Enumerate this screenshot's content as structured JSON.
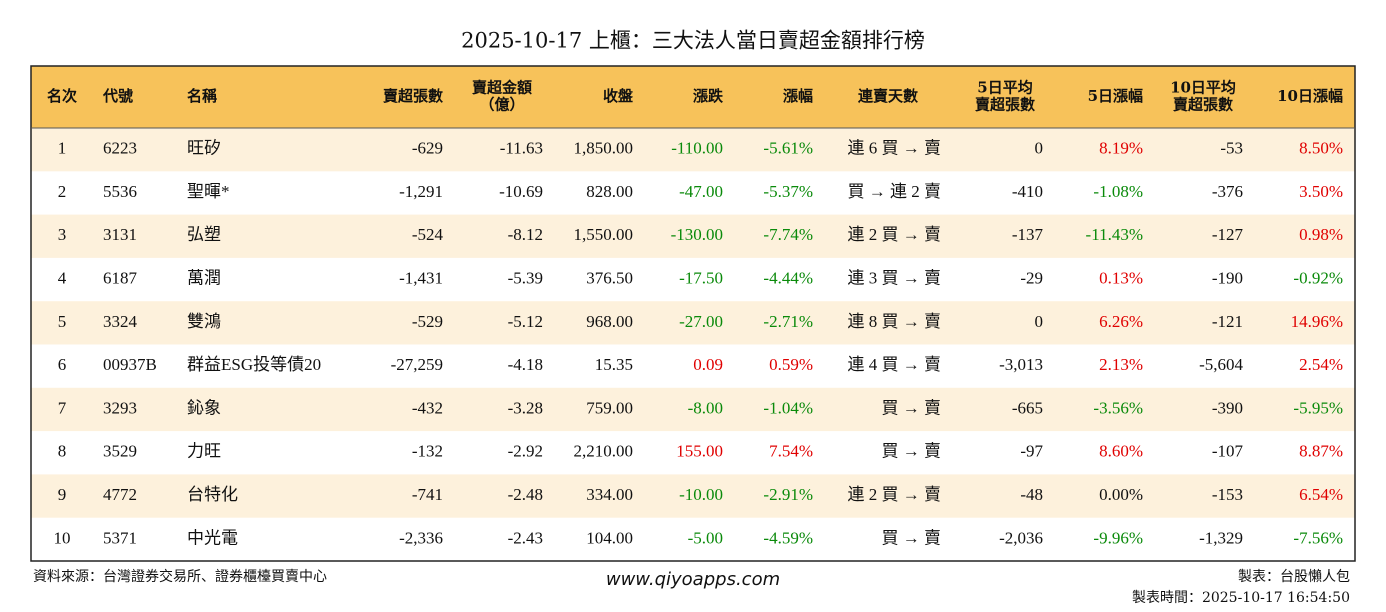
{
  "header": {
    "title": "2025-10-17 上櫃：三大法人當日賣超金額排行榜"
  },
  "table": {
    "columns": [
      "名次",
      "代號",
      "名稱",
      "賣超張數",
      [
        "賣超金額",
        "（億）"
      ],
      "收盤",
      "漲跌",
      "漲幅",
      "連賣天數",
      [
        "5日平均",
        "賣超張數"
      ],
      "5日漲幅",
      [
        "10日平均",
        "賣超張數"
      ],
      "10日漲幅"
    ],
    "header_color": "#f7c25a",
    "stripe_color": "#fdf1dc",
    "rise_color": "#e00000",
    "fall_color": "#0a8a0a",
    "rows": [
      [
        "1",
        "6223",
        "旺矽",
        "-629",
        "-11.63",
        "1,850.00",
        "-110.00",
        "-5.61%",
        "連 6 買 → 賣",
        "0",
        "8.19%",
        "-53",
        "8.50%"
      ],
      [
        "2",
        "5536",
        "聖暉*",
        "-1,291",
        "-10.69",
        "828.00",
        "-47.00",
        "-5.37%",
        "買 → 連 2 賣",
        "-410",
        "-1.08%",
        "-376",
        "3.50%"
      ],
      [
        "3",
        "3131",
        "弘塑",
        "-524",
        "-8.12",
        "1,550.00",
        "-130.00",
        "-7.74%",
        "連 2 買 → 賣",
        "-137",
        "-11.43%",
        "-127",
        "0.98%"
      ],
      [
        "4",
        "6187",
        "萬潤",
        "-1,431",
        "-5.39",
        "376.50",
        "-17.50",
        "-4.44%",
        "連 3 買 → 賣",
        "-29",
        "0.13%",
        "-190",
        "-0.92%"
      ],
      [
        "5",
        "3324",
        "雙鴻",
        "-529",
        "-5.12",
        "968.00",
        "-27.00",
        "-2.71%",
        "連 8 買 → 賣",
        "0",
        "6.26%",
        "-121",
        "14.96%"
      ],
      [
        "6",
        "00937B",
        "群益ESG投等債20",
        "-27,259",
        "-4.18",
        "15.35",
        "0.09",
        "0.59%",
        "連 4 買 → 賣",
        "-3,013",
        "2.13%",
        "-5,604",
        "2.54%"
      ],
      [
        "7",
        "3293",
        "鈊象",
        "-432",
        "-3.28",
        "759.00",
        "-8.00",
        "-1.04%",
        "買 → 賣",
        "-665",
        "-3.56%",
        "-390",
        "-5.95%"
      ],
      [
        "8",
        "3529",
        "力旺",
        "-132",
        "-2.92",
        "2,210.00",
        "155.00",
        "7.54%",
        "買 → 賣",
        "-97",
        "8.60%",
        "-107",
        "8.87%"
      ],
      [
        "9",
        "4772",
        "台特化",
        "-741",
        "-2.48",
        "334.00",
        "-10.00",
        "-2.91%",
        "連 2 買 → 賣",
        "-48",
        "0.00%",
        "-153",
        "6.54%"
      ],
      [
        "10",
        "5371",
        "中光電",
        "-2,336",
        "-2.43",
        "104.00",
        "-5.00",
        "-4.59%",
        "買 → 賣",
        "-2,036",
        "-9.96%",
        "-1,329",
        "-7.56%"
      ]
    ]
  },
  "footer": {
    "source": "資料來源：台灣證券交易所、證券櫃檯買賣中心",
    "website": "www.qiyoapps.com",
    "maker": "製表：台股懶人包",
    "time": "製表時間：2025-10-17 16:54:50"
  }
}
